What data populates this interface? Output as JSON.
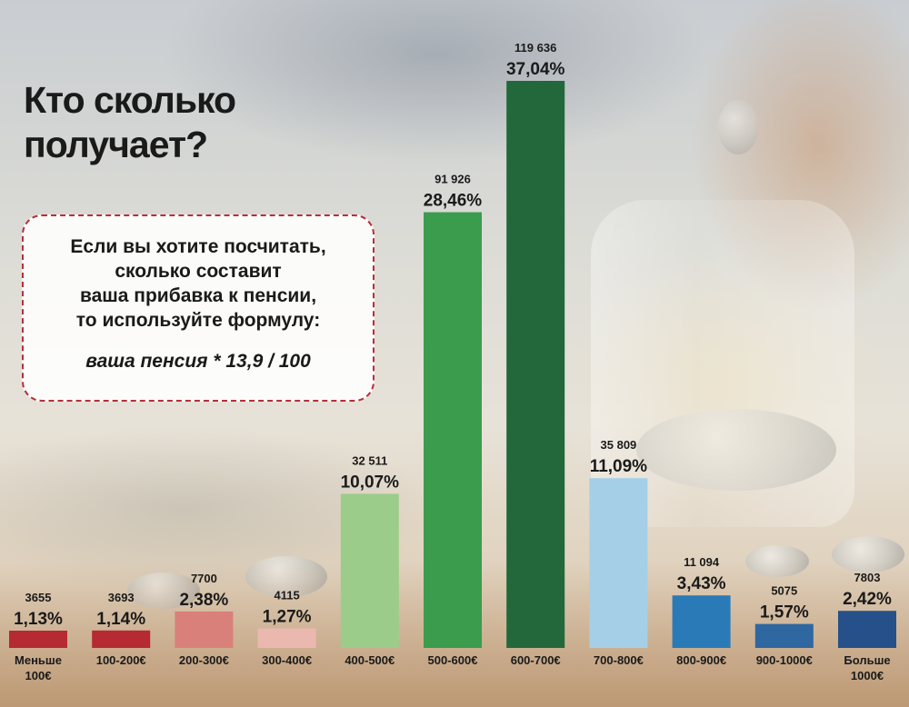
{
  "title": [
    "Кто сколько",
    "получает?"
  ],
  "note": {
    "lines": [
      "Если вы хотите посчитать,",
      "сколько составит",
      "ваша прибавка к пенсии,",
      "то используйте формулу:"
    ],
    "formula": "ваша пенсия * 13,9 / 100"
  },
  "chart_data": {
    "type": "bar",
    "categories": [
      [
        "Меньше",
        "100€"
      ],
      [
        "100-200€"
      ],
      [
        "200-300€"
      ],
      [
        "300-400€"
      ],
      [
        "400-500€"
      ],
      [
        "500-600€"
      ],
      [
        "600-700€"
      ],
      [
        "700-800€"
      ],
      [
        "800-900€"
      ],
      [
        "900-1000€"
      ],
      [
        "Больше",
        "1000€"
      ]
    ],
    "values": [
      1.13,
      1.14,
      2.38,
      1.27,
      10.07,
      28.46,
      37.04,
      11.09,
      3.43,
      1.57,
      2.42
    ],
    "value_labels": [
      "1,13%",
      "1,14%",
      "2,38%",
      "1,27%",
      "10,07%",
      "28,46%",
      "37,04%",
      "11,09%",
      "3,43%",
      "1,57%",
      "2,42%"
    ],
    "counts": [
      "3655",
      "3693",
      "7700",
      "4115",
      "32 511",
      "91 926",
      "119 636",
      "35 809",
      "11 094",
      "5075",
      "7803"
    ],
    "colors": [
      "#b52a33",
      "#b52a33",
      "#d9807a",
      "#ebb8b0",
      "#9ccc8a",
      "#3c9c4e",
      "#22683a",
      "#a5cfe6",
      "#2b7ab8",
      "#2f67a0",
      "#26508a"
    ],
    "ylim": [
      0,
      37.04
    ],
    "xlabel": "",
    "ylabel": ""
  }
}
